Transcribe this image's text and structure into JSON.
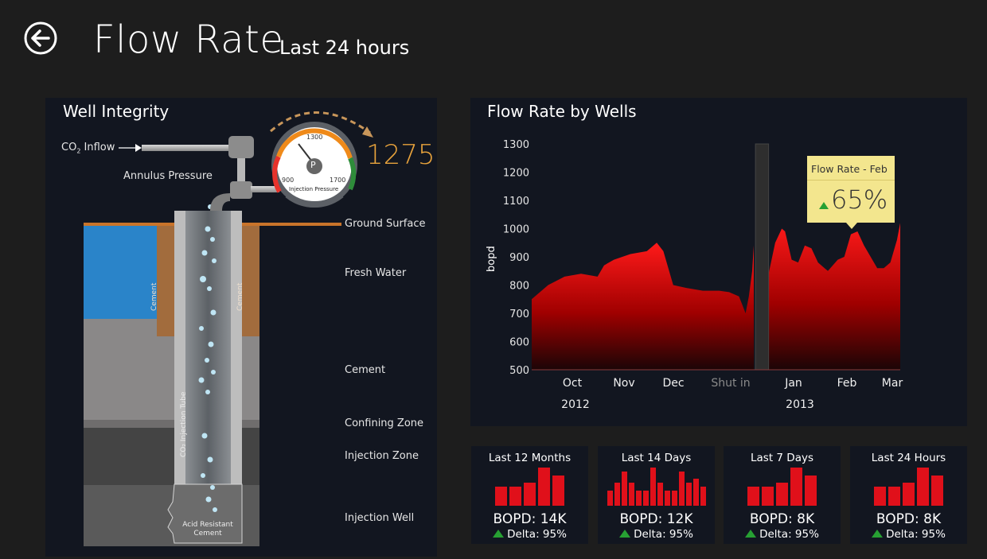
{
  "header": {
    "title": "Flow Rate",
    "subtitle": "Last 24 hours"
  },
  "well": {
    "title": "Well Integrity",
    "co2_inflow": "CO",
    "co2_sub": "2",
    "co2_inflow_rest": " Inflow",
    "annulus": "Annulus Pressure",
    "ground": "Ground Surface",
    "fresh_water": "Fresh Water",
    "cement_layer": "Cement",
    "confining": "Confining Zone",
    "injection_zone": "Injection Zone",
    "injection_well": "Injection Well",
    "cement_side": "Cement",
    "tube_label": "CO₂ Injection Tube",
    "acid_1": "Acid Resistant",
    "acid_2": "Cement",
    "gauge": {
      "max": "1300",
      "low": "900",
      "high": "1700",
      "center": "P",
      "caption": "Injection Pressure",
      "reading": "1275",
      "needle_value": 1275
    }
  },
  "flow": {
    "title": "Flow Rate by Wells",
    "ylabel": "bopd",
    "callout_title": "Flow Rate - Feb",
    "callout_value": "65%"
  },
  "chart_data": {
    "type": "area",
    "title": "Flow Rate by Wells",
    "xlabel": "",
    "ylabel": "bopd",
    "ylim": [
      500,
      1300
    ],
    "yticks": [
      1300,
      1200,
      1100,
      1000,
      900,
      800,
      700,
      600,
      500
    ],
    "xticks": [
      "Oct",
      "Nov",
      "Dec",
      "Shut in",
      "Jan",
      "Feb",
      "Mar"
    ],
    "years": [
      "2012",
      "2013"
    ],
    "series_before": [
      [
        0,
        750
      ],
      [
        0.05,
        800
      ],
      [
        0.1,
        830
      ],
      [
        0.15,
        840
      ],
      [
        0.2,
        830
      ],
      [
        0.22,
        870
      ],
      [
        0.25,
        890
      ],
      [
        0.3,
        910
      ],
      [
        0.35,
        920
      ],
      [
        0.38,
        950
      ],
      [
        0.4,
        920
      ],
      [
        0.43,
        800
      ],
      [
        0.47,
        790
      ],
      [
        0.52,
        780
      ],
      [
        0.57,
        780
      ],
      [
        0.6,
        775
      ],
      [
        0.63,
        760
      ],
      [
        0.64,
        730
      ],
      [
        0.65,
        700
      ],
      [
        0.66,
        760
      ],
      [
        0.67,
        850
      ],
      [
        0.675,
        940
      ]
    ],
    "series_after": [
      [
        0.72,
        840
      ],
      [
        0.74,
        950
      ],
      [
        0.76,
        1000
      ],
      [
        0.77,
        990
      ],
      [
        0.79,
        890
      ],
      [
        0.81,
        880
      ],
      [
        0.83,
        940
      ],
      [
        0.85,
        930
      ],
      [
        0.87,
        880
      ],
      [
        0.89,
        860
      ],
      [
        0.9,
        850
      ],
      [
        0.93,
        890
      ],
      [
        0.95,
        900
      ],
      [
        0.97,
        980
      ],
      [
        0.99,
        990
      ],
      [
        1.01,
        940
      ],
      [
        1.03,
        900
      ],
      [
        1.05,
        860
      ],
      [
        1.07,
        860
      ],
      [
        1.09,
        880
      ],
      [
        1.11,
        960
      ],
      [
        1.12,
        1020
      ]
    ],
    "shut_in": [
      0.68,
      0.72
    ],
    "grid": false
  },
  "cards": [
    {
      "title": "Last 12 Months",
      "value": "BOPD: 14K",
      "delta": "Delta: 95%",
      "bars": [
        5,
        5,
        6,
        10,
        8
      ]
    },
    {
      "title": "Last 14 Days",
      "value": "BOPD: 12K",
      "delta": "Delta: 95%",
      "bars": [
        4,
        6,
        9,
        6,
        4,
        4,
        10,
        6,
        4,
        4,
        9,
        6,
        7,
        5
      ]
    },
    {
      "title": "Last 7 Days",
      "value": "BOPD: 8K",
      "delta": "Delta: 95%",
      "bars": [
        5,
        5,
        6,
        10,
        8
      ]
    },
    {
      "title": "Last 24 Hours",
      "value": "BOPD: 8K",
      "delta": "Delta: 95%",
      "bars": [
        5,
        5,
        6,
        10,
        8
      ]
    }
  ],
  "colors": {
    "accent_orange": "#e8a33c",
    "gauge_green": "#2e8c3a",
    "bar_red": "#e0101a",
    "delta_green": "#27a033",
    "panel": "#121620",
    "callout": "#f3e68e"
  }
}
